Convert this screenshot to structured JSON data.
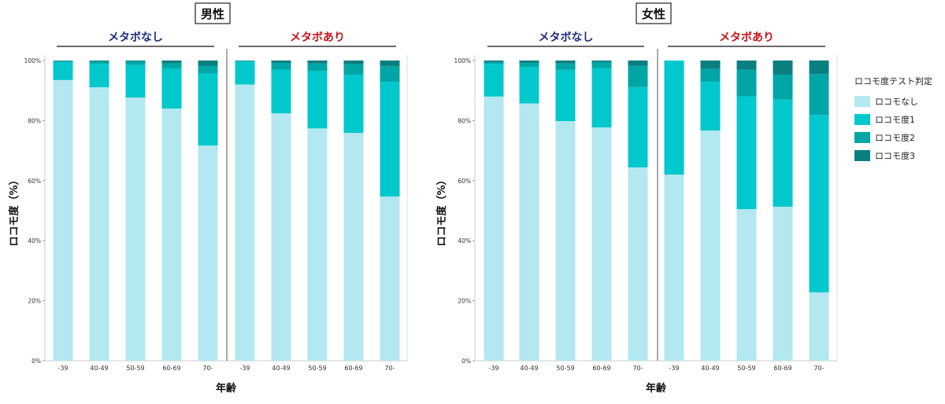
{
  "legend": {
    "title": "ロコモ度テスト判定",
    "items": [
      {
        "label": "ロコモなし",
        "color": "#b3e8f0"
      },
      {
        "label": "ロコモ度1",
        "color": "#00c8cc"
      },
      {
        "label": "ロコモ度2",
        "color": "#00a6a6"
      },
      {
        "label": "ロコモ度3",
        "color": "#0a7f80"
      }
    ]
  },
  "chart_data": [
    {
      "type": "bar",
      "stacked": true,
      "title": "男性",
      "xlabel": "年齢",
      "ylabel": "ロコモ度（%）",
      "ylim": [
        0,
        100
      ],
      "yticks": [
        "0%",
        "20%",
        "40%",
        "60%",
        "80%",
        "100%"
      ],
      "groups": [
        {
          "label": "メタボなし",
          "color": "#1f2d7a",
          "categories": [
            "-39",
            "40-49",
            "50-59",
            "60-69",
            "70-"
          ],
          "series": [
            {
              "name": "ロコモなし",
              "values": [
                93.5,
                91.1,
                87.7,
                84.0,
                71.7
              ]
            },
            {
              "name": "ロコモ度1",
              "values": [
                6.0,
                7.8,
                10.8,
                13.4,
                24.0
              ]
            },
            {
              "name": "ロコモ度2",
              "values": [
                0.4,
                0.8,
                1.2,
                1.7,
                2.6
              ]
            },
            {
              "name": "ロコモ度3",
              "values": [
                0.1,
                0.3,
                0.3,
                0.9,
                1.7
              ]
            }
          ]
        },
        {
          "label": "メタボあり",
          "color": "#c8141c",
          "categories": [
            "-39",
            "40-49",
            "50-59",
            "60-69",
            "70-"
          ],
          "series": [
            {
              "name": "ロコモなし",
              "values": [
                92.0,
                82.4,
                77.4,
                75.9,
                54.7
              ]
            },
            {
              "name": "ロコモ度1",
              "values": [
                7.7,
                14.6,
                19.2,
                19.4,
                38.2
              ]
            },
            {
              "name": "ロコモ度2",
              "values": [
                0.2,
                2.2,
                2.4,
                3.5,
                5.2
              ]
            },
            {
              "name": "ロコモ度3",
              "values": [
                0.1,
                0.8,
                1.0,
                1.2,
                1.9
              ]
            }
          ]
        }
      ]
    },
    {
      "type": "bar",
      "stacked": true,
      "title": "女性",
      "xlabel": "年齢",
      "ylabel": "ロコモ度（%）",
      "ylim": [
        0,
        100
      ],
      "yticks": [
        "0%",
        "20%",
        "40%",
        "60%",
        "80%",
        "100%"
      ],
      "groups": [
        {
          "label": "メタボなし",
          "color": "#1f2d7a",
          "categories": [
            "-39",
            "40-49",
            "50-59",
            "60-69",
            "70-"
          ],
          "series": [
            {
              "name": "ロコモなし",
              "values": [
                88.0,
                85.7,
                79.8,
                77.7,
                64.4
              ]
            },
            {
              "name": "ロコモ度1",
              "values": [
                10.9,
                12.2,
                17.1,
                19.8,
                26.8
              ]
            },
            {
              "name": "ロコモ度2",
              "values": [
                0.6,
                1.3,
                2.1,
                2.0,
                7.0
              ]
            },
            {
              "name": "ロコモ度3",
              "values": [
                0.5,
                0.8,
                1.0,
                0.5,
                1.8
              ]
            }
          ]
        },
        {
          "label": "メタボあり",
          "color": "#c8141c",
          "categories": [
            "-39",
            "40-49",
            "50-59",
            "60-69",
            "70-"
          ],
          "series": [
            {
              "name": "ロコモなし",
              "values": [
                62.0,
                76.7,
                50.5,
                51.3,
                22.8
              ]
            },
            {
              "name": "ロコモ度1",
              "values": [
                38.0,
                16.2,
                37.6,
                35.7,
                59.1
              ]
            },
            {
              "name": "ロコモ度2",
              "values": [
                0.0,
                4.3,
                8.8,
                8.3,
                13.6
              ]
            },
            {
              "name": "ロコモ度3",
              "values": [
                0.0,
                2.8,
                3.1,
                4.7,
                4.5
              ]
            }
          ]
        }
      ]
    }
  ]
}
